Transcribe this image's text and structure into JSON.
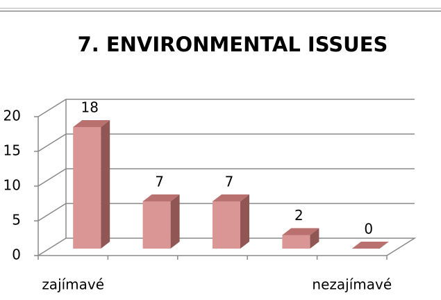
{
  "chart_data": {
    "type": "bar",
    "title": "7. ENVIRONMENTAL ISSUES",
    "categories": [
      "zajímavé",
      null,
      null,
      null,
      "nezajímavé"
    ],
    "values": [
      18,
      7,
      7,
      2,
      0
    ],
    "color": "#d99694",
    "ylim": [
      0,
      20
    ],
    "yticks": [
      0,
      5,
      10,
      15,
      20
    ],
    "grid": true
  }
}
